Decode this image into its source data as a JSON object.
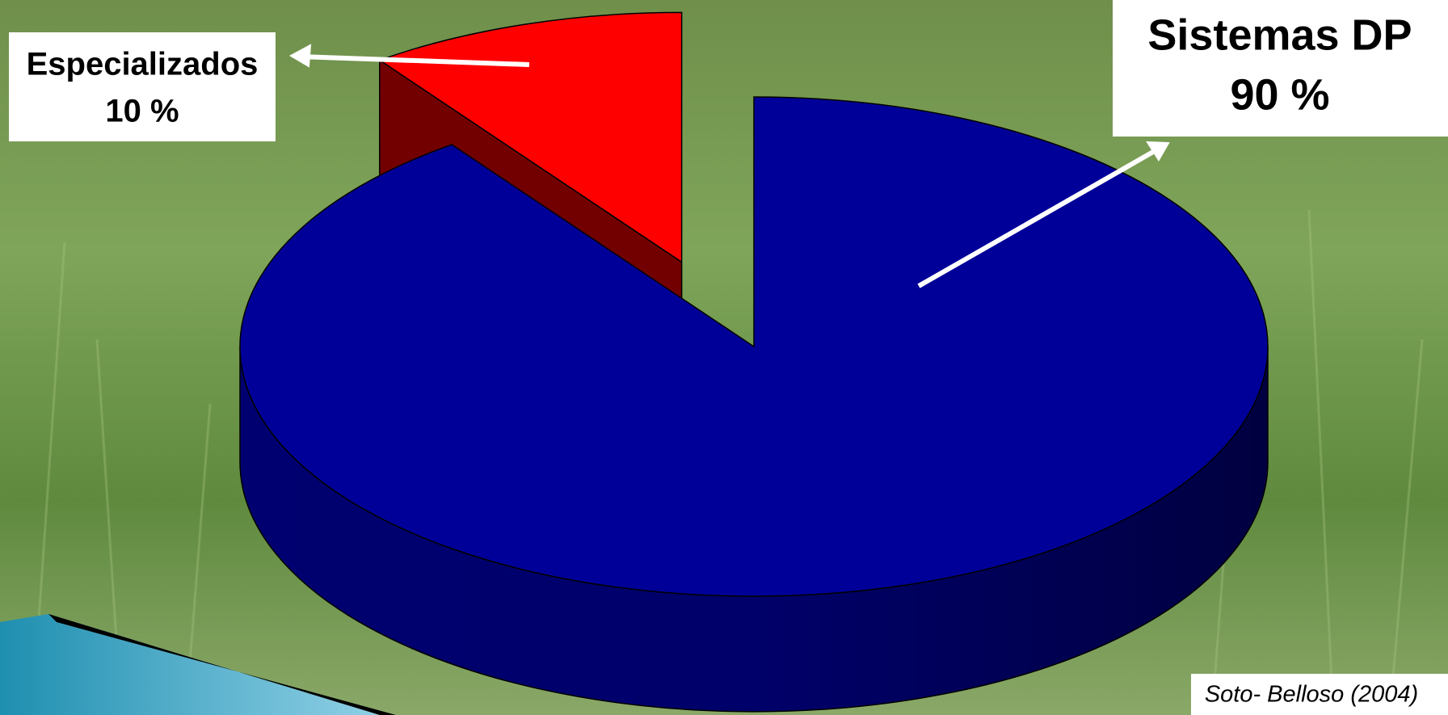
{
  "chart_data": {
    "type": "pie",
    "categories": [
      "Sistemas DP",
      "Especializados"
    ],
    "values": [
      90,
      10
    ],
    "value_labels": [
      "90 %",
      "10 %"
    ],
    "colors": [
      "#000099",
      "#ff0000"
    ],
    "source": "Soto- Belloso (2004)"
  }
}
